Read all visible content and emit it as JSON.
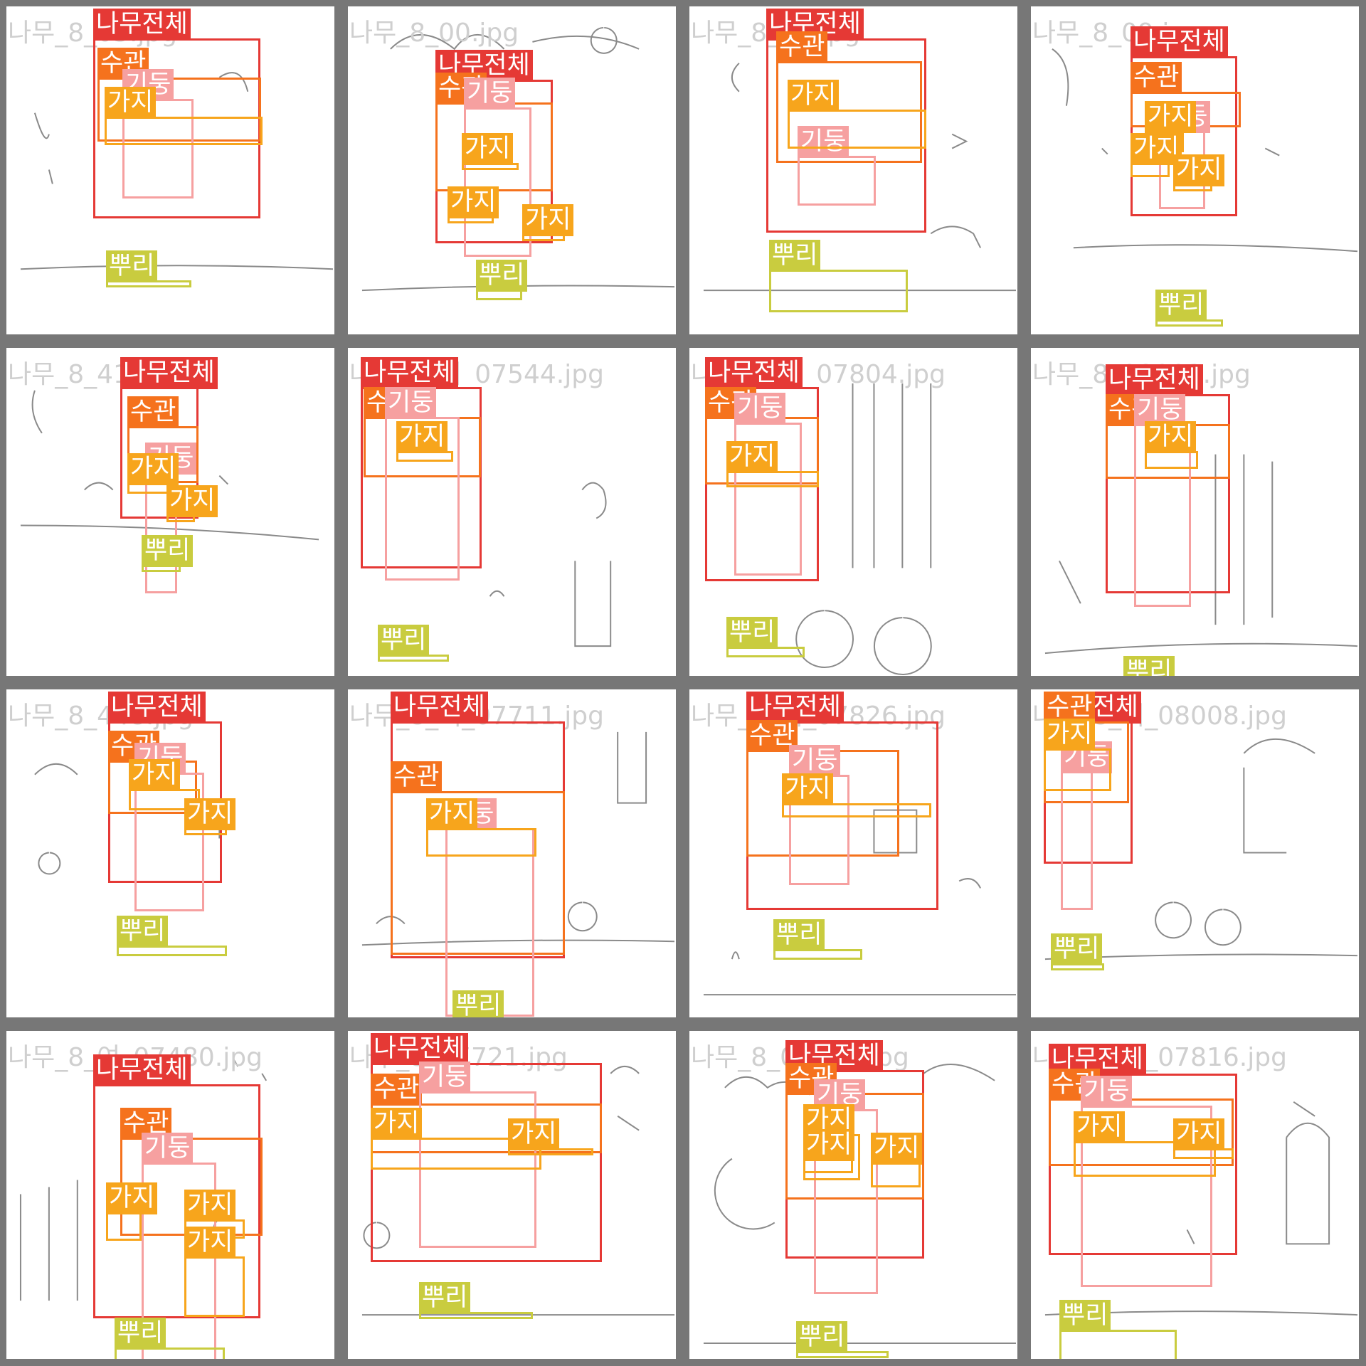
{
  "labels": {
    "tree": "나무전체",
    "crown": "수관",
    "trunk": "기둥",
    "branch": "가지",
    "root": "뿌리"
  },
  "colors": {
    "tree": "#e53935",
    "crown": "#f5721d",
    "trunk": "#f6a0a0",
    "branch": "#f7a51c",
    "root": "#c9cc3f",
    "sketch": "#8a8a8a"
  },
  "tiles": [
    {
      "filename": "나무_8_05.jpg"
    },
    {
      "filename": "나무_8_00.jpg"
    },
    {
      "filename": "나무_8_06.jpg"
    },
    {
      "filename": "나무_8_09.jpg"
    },
    {
      "filename": "나무_8_414.jpg"
    },
    {
      "filename": "나무_8_여_07544.jpg"
    },
    {
      "filename": "나무_8_여_07804.jpg"
    },
    {
      "filename": "나무_8_08003.jpg"
    },
    {
      "filename": "나무_8_448.jpg"
    },
    {
      "filename": "나무_8_여_07711.jpg"
    },
    {
      "filename": "나무_8_여_07826.jpg"
    },
    {
      "filename": "나무_8_여_08008.jpg"
    },
    {
      "filename": "나무_8_여_07480.jpg"
    },
    {
      "filename": "나무_8_07721.jpg"
    },
    {
      "filename": "나무_8_07818.jpg"
    },
    {
      "filename": "나무_8_여_07816.jpg"
    }
  ]
}
